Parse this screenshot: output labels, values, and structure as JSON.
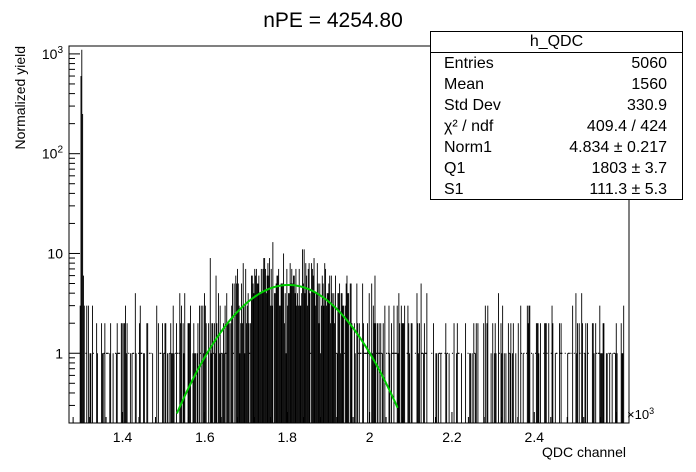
{
  "chart_data": {
    "type": "bar",
    "title": "nPE = 4254.80",
    "xlabel": "QDC channel",
    "ylabel": "Normalized yield",
    "x_exponent_label": "×10",
    "x_exponent_power": "3",
    "xlim": [
      1.27,
      2.63
    ],
    "ylim_log": [
      0.2,
      1200
    ],
    "log_y": true,
    "x_ticks": [
      {
        "value": 1.4,
        "label": "1.4"
      },
      {
        "value": 1.6,
        "label": "1.6"
      },
      {
        "value": 1.8,
        "label": "1.8"
      },
      {
        "value": 2.0,
        "label": "2"
      },
      {
        "value": 2.2,
        "label": "2.2"
      },
      {
        "value": 2.4,
        "label": "2.4"
      }
    ],
    "y_ticks": [
      {
        "value": 1,
        "label": "1",
        "sup": ""
      },
      {
        "value": 10,
        "label": "10",
        "sup": ""
      },
      {
        "value": 100,
        "label": "10",
        "sup": "2"
      },
      {
        "value": 1000,
        "label": "10",
        "sup": "3"
      }
    ],
    "histogram": {
      "name": "h_QDC",
      "bin_width": 0.002,
      "peak_bins": [
        {
          "x": 1.296,
          "y": 3
        },
        {
          "x": 1.298,
          "y": 600
        },
        {
          "x": 1.3,
          "y": 1100
        },
        {
          "x": 1.302,
          "y": 250
        },
        {
          "x": 1.304,
          "y": 6
        },
        {
          "x": 1.306,
          "y": 3
        }
      ],
      "range": [
        1.31,
        2.622
      ],
      "fluctuating": true
    },
    "fit": {
      "function": "gaus",
      "color": "#00cc00",
      "norm": 4.834,
      "mean": 1.803,
      "sigma": 0.1113,
      "x_range": [
        1.532,
        2.068
      ]
    }
  },
  "stats_box": {
    "title": "h_QDC",
    "rows": [
      {
        "label": "Entries",
        "value": "5060"
      },
      {
        "label": "Mean",
        "value": "1560"
      },
      {
        "label": "Std Dev",
        "value": "330.9"
      },
      {
        "label": "χ² / ndf",
        "value": "409.4 / 424"
      },
      {
        "label": "Norm1",
        "value": "4.834 ± 0.217"
      },
      {
        "label": "Q1",
        "value": "1803 ± 3.7"
      },
      {
        "label": "S1",
        "value": "111.3 ± 5.3"
      }
    ]
  }
}
